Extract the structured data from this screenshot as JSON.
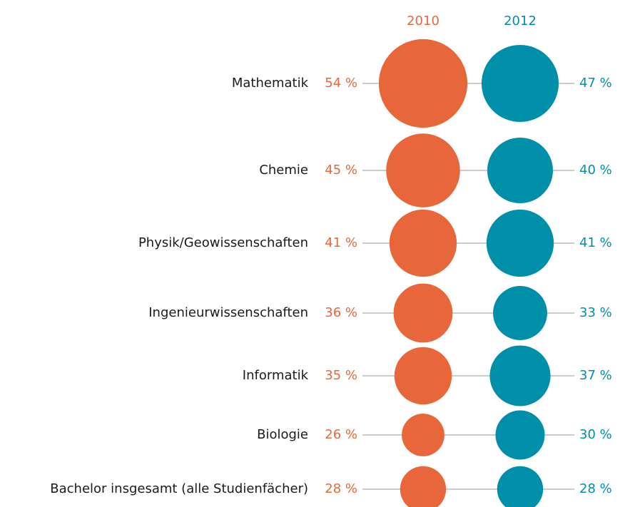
{
  "chart_data": {
    "type": "bubble",
    "categories": [
      "Mathematik",
      "Chemie",
      "Physik/Geowissenschaften",
      "Ingenieurwissenschaften",
      "Informatik",
      "Biologie",
      "Bachelor insgesamt (alle Studienfächer)"
    ],
    "series": [
      {
        "name": "2010",
        "color": "#e8673a",
        "values": [
          54,
          45,
          41,
          36,
          35,
          26,
          28
        ],
        "value_labels": [
          "54 %",
          "45 %",
          "41 %",
          "36 %",
          "35 %",
          "26 %",
          "28 %"
        ]
      },
      {
        "name": "2012",
        "color": "#008fa8",
        "values": [
          47,
          40,
          41,
          33,
          37,
          30,
          28
        ],
        "value_labels": [
          "47 %",
          "40 %",
          "41 %",
          "33 %",
          "37 %",
          "30 %",
          "28 %"
        ]
      }
    ]
  }
}
